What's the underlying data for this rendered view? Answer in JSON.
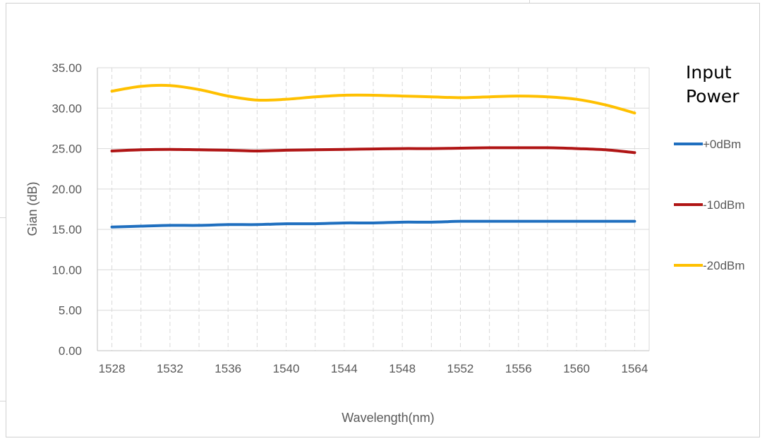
{
  "chart_data": {
    "type": "line",
    "title": "",
    "xlabel": "Wavelength(nm)",
    "ylabel": "Gian (dB)",
    "xlim": [
      1527,
      1565
    ],
    "ylim": [
      0,
      35
    ],
    "x_ticks": [
      1528,
      1532,
      1536,
      1540,
      1544,
      1548,
      1552,
      1556,
      1560,
      1564
    ],
    "y_ticks": [
      "0.00",
      "5.00",
      "10.00",
      "15.00",
      "20.00",
      "25.00",
      "30.00",
      "35.00"
    ],
    "grid": {
      "horizontal": "solid",
      "vertical": "dashed"
    },
    "legend": {
      "title": "Input\nPower",
      "placement": "right"
    },
    "x": [
      1528,
      1530,
      1532,
      1534,
      1536,
      1538,
      1540,
      1542,
      1544,
      1546,
      1548,
      1550,
      1552,
      1554,
      1556,
      1558,
      1560,
      1562,
      1564
    ],
    "series": [
      {
        "name": "+0dBm",
        "color": "#1f6fbf",
        "values": [
          15.3,
          15.4,
          15.5,
          15.5,
          15.6,
          15.6,
          15.7,
          15.7,
          15.8,
          15.8,
          15.9,
          15.9,
          16.0,
          16.0,
          16.0,
          16.0,
          16.0,
          16.0,
          16.0
        ]
      },
      {
        "name": "-10dBm",
        "color": "#b01515",
        "values": [
          24.7,
          24.85,
          24.9,
          24.85,
          24.8,
          24.7,
          24.8,
          24.85,
          24.9,
          24.95,
          25.0,
          25.0,
          25.05,
          25.1,
          25.1,
          25.1,
          25.0,
          24.85,
          24.5
        ]
      },
      {
        "name": "-20dBm",
        "color": "#ffc000",
        "values": [
          32.1,
          32.7,
          32.8,
          32.3,
          31.5,
          31.0,
          31.1,
          31.4,
          31.6,
          31.6,
          31.5,
          31.4,
          31.3,
          31.4,
          31.5,
          31.4,
          31.1,
          30.4,
          29.4
        ]
      }
    ]
  }
}
